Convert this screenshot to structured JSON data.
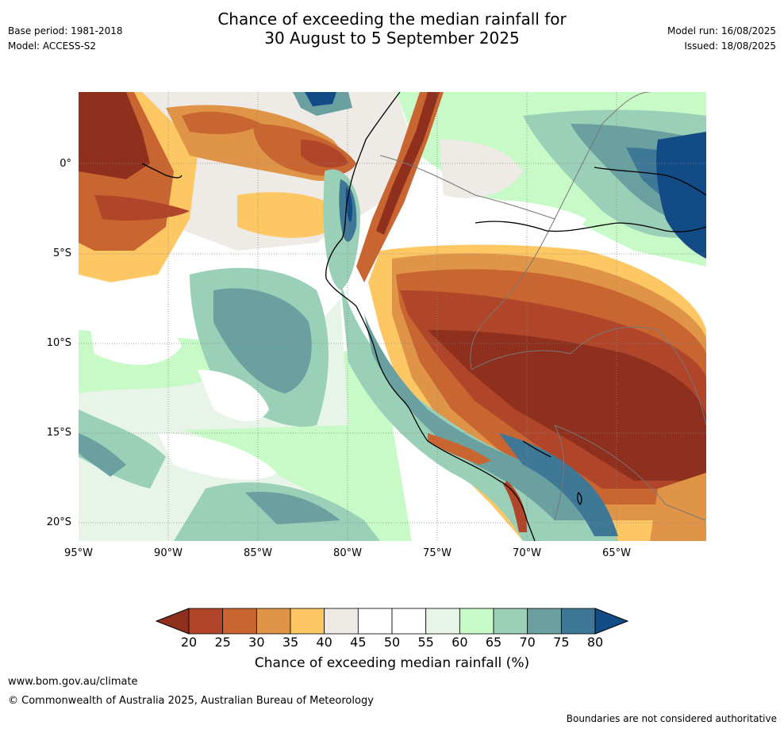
{
  "title_line1": "Chance of exceeding the median rainfall for",
  "title_line2": "30 August to 5 September 2025",
  "base_period": "Base period: 1981-2018",
  "model": "Model: ACCESS-S2",
  "model_run": "Model run: 16/08/2025",
  "issued": "Issued: 18/08/2025",
  "lat_labels": [
    "0°",
    "5°S",
    "10°S",
    "15°S",
    "20°S"
  ],
  "lon_labels": [
    "95°W",
    "90°W",
    "85°W",
    "80°W",
    "75°W",
    "70°W",
    "65°W"
  ],
  "colorbar": {
    "ticks": [
      "20",
      "25",
      "30",
      "35",
      "40",
      "45",
      "50",
      "55",
      "60",
      "65",
      "70",
      "75",
      "80"
    ],
    "colors": [
      "#8f2f1e",
      "#b0452a",
      "#c96531",
      "#e09447",
      "#fdc864",
      "#eeeae6",
      "#ffffff",
      "#ffffff",
      "#e8f4e8",
      "#c8fac8",
      "#9ad0b8",
      "#6aa0a0",
      "#3f7797",
      "#124b86"
    ],
    "label": "Chance of exceeding median rainfall (%)"
  },
  "footer_url": "www.bom.gov.au/climate",
  "footer_copyright": "© Commonwealth of Australia 2025, Australian Bureau of Meteorology",
  "disclaimer": "Boundaries are not considered authoritative"
}
